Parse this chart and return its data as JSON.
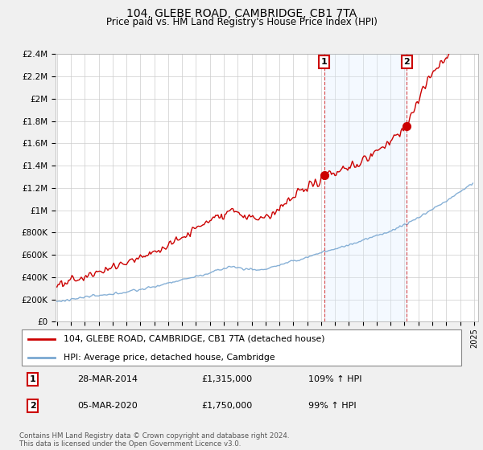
{
  "title": "104, GLEBE ROAD, CAMBRIDGE, CB1 7TA",
  "subtitle": "Price paid vs. HM Land Registry's House Price Index (HPI)",
  "ylim": [
    0,
    2400000
  ],
  "yticks": [
    0,
    200000,
    400000,
    600000,
    800000,
    1000000,
    1200000,
    1400000,
    1600000,
    1800000,
    2000000,
    2200000,
    2400000
  ],
  "ytick_labels": [
    "£0",
    "£200K",
    "£400K",
    "£600K",
    "£800K",
    "£1M",
    "£1.2M",
    "£1.4M",
    "£1.6M",
    "£1.8M",
    "£2M",
    "£2.2M",
    "£2.4M"
  ],
  "legend_line1": "104, GLEBE ROAD, CAMBRIDGE, CB1 7TA (detached house)",
  "legend_line2": "HPI: Average price, detached house, Cambridge",
  "sale1_date": 2014.23,
  "sale1_price": 1315000,
  "sale1_label": "1",
  "sale2_date": 2020.17,
  "sale2_price": 1750000,
  "sale2_label": "2",
  "table_row1": [
    "1",
    "28-MAR-2014",
    "£1,315,000",
    "109% ↑ HPI"
  ],
  "table_row2": [
    "2",
    "05-MAR-2020",
    "£1,750,000",
    "99% ↑ HPI"
  ],
  "footer": "Contains HM Land Registry data © Crown copyright and database right 2024.\nThis data is licensed under the Open Government Licence v3.0.",
  "red_color": "#cc0000",
  "blue_color": "#7aa8d2",
  "shade_color": "#ddeeff",
  "background_color": "#f0f0f0",
  "plot_background": "#ffffff",
  "grid_color": "#cccccc"
}
